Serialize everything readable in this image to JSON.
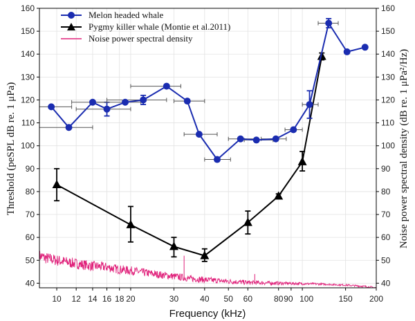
{
  "chart_data": {
    "type": "line",
    "xlabel": "Frequency (kHz)",
    "ylabel_left": "Threshold (peSPL dB re. 1 μPa)",
    "ylabel_right": "Noise power spectral density (dB re. 1 μPa²/Hz)",
    "x_scale": "log",
    "xlim": [
      8.5,
      200
    ],
    "ylim": [
      38,
      160
    ],
    "xtick_labels": [
      "10",
      "12",
      "14",
      "16",
      "18",
      "20",
      "30",
      "40",
      "50",
      "60",
      "80",
      "90",
      "100",
      "150",
      "200"
    ],
    "ytick_labels": [
      "40",
      "50",
      "60",
      "70",
      "80",
      "90",
      "100",
      "110",
      "120",
      "130",
      "140",
      "150",
      "160"
    ],
    "grid": true,
    "legend_position": "top-left",
    "colors": {
      "melon": "#1a2cb0",
      "pygmy": "#000000",
      "noise": "#e0207a"
    },
    "series": [
      {
        "name": "Melon headed whale",
        "marker": "circle",
        "points": [
          {
            "x": 9.5,
            "y": 117,
            "xerr": [
              8.5,
              11.5
            ],
            "yerr": null
          },
          {
            "x": 11.2,
            "y": 108,
            "xerr": [
              8.5,
              14
            ],
            "yerr": null
          },
          {
            "x": 14,
            "y": 119,
            "xerr": [
              11.5,
              16
            ],
            "yerr": null
          },
          {
            "x": 16,
            "y": 116,
            "xerr": [
              12,
              20
            ],
            "yerr": [
              113,
              119
            ]
          },
          {
            "x": 19,
            "y": 119,
            "xerr": [
              14,
              22
            ],
            "yerr": null
          },
          {
            "x": 22.5,
            "y": 120,
            "xerr": [
              16,
              28
            ],
            "yerr": [
              118,
              122
            ]
          },
          {
            "x": 28,
            "y": 126,
            "xerr": [
              20,
              32
            ],
            "yerr": null
          },
          {
            "x": 34,
            "y": 119.5,
            "xerr": [
              30,
              40
            ],
            "yerr": null
          },
          {
            "x": 38,
            "y": 105,
            "xerr": [
              33,
              45
            ],
            "yerr": null
          },
          {
            "x": 45,
            "y": 94,
            "xerr": [
              40,
              51
            ],
            "yerr": null
          },
          {
            "x": 56,
            "y": 103,
            "xerr": [
              50,
              65
            ],
            "yerr": null
          },
          {
            "x": 65,
            "y": 102.5,
            "xerr": [
              58,
              76
            ],
            "yerr": null
          },
          {
            "x": 78,
            "y": 103,
            "xerr": [
              68,
              86
            ],
            "yerr": null
          },
          {
            "x": 92,
            "y": 107,
            "xerr": [
              85,
              100
            ],
            "yerr": null
          },
          {
            "x": 107,
            "y": 118,
            "xerr": [
              100,
              116
            ],
            "yerr": [
              112,
              124
            ]
          },
          {
            "x": 128,
            "y": 153.5,
            "xerr": [
              116,
              140
            ],
            "yerr": [
              151.5,
              155.5
            ]
          },
          {
            "x": 152,
            "y": 141,
            "xerr": null,
            "yerr": null
          },
          {
            "x": 180,
            "y": 143,
            "xerr": null,
            "yerr": null
          }
        ]
      },
      {
        "name": "Pygmy killer whale (Montie et al.2011)",
        "marker": "triangle",
        "points": [
          {
            "x": 10,
            "y": 83,
            "yerr": [
              76,
              90
            ]
          },
          {
            "x": 20,
            "y": 65.5,
            "yerr": [
              58,
              73.5
            ]
          },
          {
            "x": 30,
            "y": 56,
            "yerr": [
              51.5,
              60
            ]
          },
          {
            "x": 40,
            "y": 52,
            "yerr": [
              49.5,
              55
            ]
          },
          {
            "x": 60,
            "y": 66.5,
            "yerr": [
              61.5,
              71.5
            ]
          },
          {
            "x": 80,
            "y": 78,
            "yerr": [
              77,
              79
            ]
          },
          {
            "x": 100,
            "y": 93,
            "yerr": [
              89,
              97.5
            ]
          },
          {
            "x": 120,
            "y": 139,
            "yerr": [
              137.5,
              140.5
            ]
          }
        ]
      },
      {
        "name": "Noise power spectral density",
        "marker": "none",
        "axis": "right",
        "points": [
          {
            "x": 8.5,
            "y": 52
          },
          {
            "x": 9,
            "y": 51
          },
          {
            "x": 10,
            "y": 50
          },
          {
            "x": 12,
            "y": 48.5
          },
          {
            "x": 14,
            "y": 47.5
          },
          {
            "x": 16,
            "y": 47
          },
          {
            "x": 18,
            "y": 46
          },
          {
            "x": 20,
            "y": 45.5
          },
          {
            "x": 25,
            "y": 44
          },
          {
            "x": 30,
            "y": 43
          },
          {
            "x": 35,
            "y": 42
          },
          {
            "x": 40,
            "y": 41.5
          },
          {
            "x": 50,
            "y": 40.8
          },
          {
            "x": 60,
            "y": 40.3
          },
          {
            "x": 80,
            "y": 40
          },
          {
            "x": 100,
            "y": 39.8
          },
          {
            "x": 120,
            "y": 39.6
          },
          {
            "x": 150,
            "y": 39.2
          },
          {
            "x": 180,
            "y": 38.6
          },
          {
            "x": 200,
            "y": 38
          }
        ],
        "spikes": [
          {
            "x": 33,
            "y": 52
          },
          {
            "x": 64,
            "y": 44
          }
        ]
      }
    ]
  }
}
